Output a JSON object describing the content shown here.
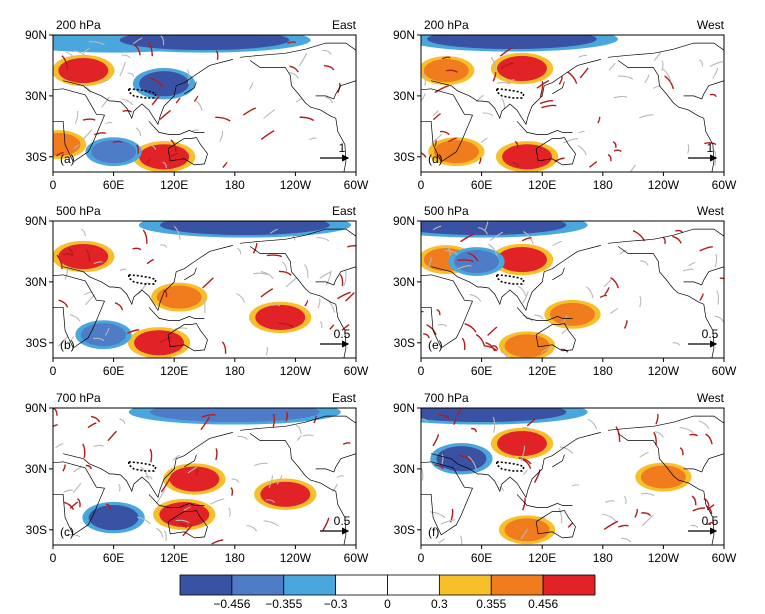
{
  "colors": {
    "negative_strong": "#3a52a3",
    "negative_mid": "#4f7cc7",
    "negative_weak": "#4aa7de",
    "neutral": "#ffffff",
    "positive_weak": "#f7c02b",
    "positive_mid": "#f07c1e",
    "positive_strong": "#e12328",
    "vector_significant": "#b31b1b",
    "vector_other": "#b8b8b8",
    "coast": "#000000"
  },
  "chart_data": {
    "type": "heatmap",
    "x_ticks": [
      "0",
      "60E",
      "120E",
      "180",
      "120W",
      "60W"
    ],
    "y_ticks": [
      "90N",
      "30N",
      "30S"
    ],
    "panels": [
      {
        "id": "a",
        "level": "200 hPa",
        "region": "East",
        "label": "(a)",
        "ref_vector": "1",
        "anomalies": [
          {
            "lon": 30,
            "lat": 55,
            "sign": "positive",
            "magnitude": 0.456
          },
          {
            "lon": 60,
            "lat": 85,
            "sign": "negative",
            "magnitude": 0.3
          },
          {
            "lon": 150,
            "lat": 85,
            "sign": "negative",
            "magnitude": 0.456
          },
          {
            "lon": 110,
            "lat": 42,
            "sign": "negative",
            "magnitude": 0.456
          },
          {
            "lon": 110,
            "lat": -30,
            "sign": "positive",
            "magnitude": 0.456
          },
          {
            "lon": 60,
            "lat": -25,
            "sign": "negative",
            "magnitude": 0.355
          },
          {
            "lon": 5,
            "lat": -18,
            "sign": "positive",
            "magnitude": 0.355
          }
        ]
      },
      {
        "id": "d",
        "level": "200 hPa",
        "region": "West",
        "label": "(d)",
        "ref_vector": "1",
        "anomalies": [
          {
            "lon": 90,
            "lat": 86,
            "sign": "negative",
            "magnitude": 0.456
          },
          {
            "lon": 100,
            "lat": 57,
            "sign": "positive",
            "magnitude": 0.456
          },
          {
            "lon": 25,
            "lat": 55,
            "sign": "positive",
            "magnitude": 0.355
          },
          {
            "lon": 105,
            "lat": -30,
            "sign": "positive",
            "magnitude": 0.456
          },
          {
            "lon": 35,
            "lat": -25,
            "sign": "positive",
            "magnitude": 0.355
          }
        ]
      },
      {
        "id": "b",
        "level": "500 hPa",
        "region": "East",
        "label": "(b)",
        "ref_vector": "0.5",
        "anomalies": [
          {
            "lon": 30,
            "lat": 55,
            "sign": "positive",
            "magnitude": 0.456
          },
          {
            "lon": 190,
            "lat": 86,
            "sign": "negative",
            "magnitude": 0.456
          },
          {
            "lon": 125,
            "lat": 15,
            "sign": "positive",
            "magnitude": 0.355
          },
          {
            "lon": 225,
            "lat": -5,
            "sign": "positive",
            "magnitude": 0.456
          },
          {
            "lon": 105,
            "lat": -30,
            "sign": "positive",
            "magnitude": 0.456
          },
          {
            "lon": 50,
            "lat": -22,
            "sign": "negative",
            "magnitude": 0.355
          }
        ]
      },
      {
        "id": "e",
        "level": "500 hPa",
        "region": "West",
        "label": "(e)",
        "ref_vector": "0.5",
        "anomalies": [
          {
            "lon": 60,
            "lat": 86,
            "sign": "negative",
            "magnitude": 0.456
          },
          {
            "lon": 100,
            "lat": 52,
            "sign": "positive",
            "magnitude": 0.456
          },
          {
            "lon": 25,
            "lat": 52,
            "sign": "positive",
            "magnitude": 0.355
          },
          {
            "lon": 55,
            "lat": 50,
            "sign": "negative",
            "magnitude": 0.355
          },
          {
            "lon": 150,
            "lat": -2,
            "sign": "positive",
            "magnitude": 0.355
          },
          {
            "lon": 105,
            "lat": -33,
            "sign": "positive",
            "magnitude": 0.355
          }
        ]
      },
      {
        "id": "c",
        "level": "700 hPa",
        "region": "East",
        "label": "(c)",
        "ref_vector": "0.5",
        "anomalies": [
          {
            "lon": 180,
            "lat": 86,
            "sign": "negative",
            "magnitude": 0.355
          },
          {
            "lon": 140,
            "lat": 20,
            "sign": "positive",
            "magnitude": 0.456
          },
          {
            "lon": 230,
            "lat": 5,
            "sign": "positive",
            "magnitude": 0.456
          },
          {
            "lon": 130,
            "lat": -15,
            "sign": "positive",
            "magnitude": 0.456
          },
          {
            "lon": 60,
            "lat": -18,
            "sign": "negative",
            "magnitude": 0.456
          }
        ]
      },
      {
        "id": "f",
        "level": "700 hPa",
        "region": "West",
        "label": "(f)",
        "ref_vector": "0.5",
        "anomalies": [
          {
            "lon": 60,
            "lat": 86,
            "sign": "negative",
            "magnitude": 0.456
          },
          {
            "lon": 100,
            "lat": 55,
            "sign": "positive",
            "magnitude": 0.456
          },
          {
            "lon": 40,
            "lat": 40,
            "sign": "negative",
            "magnitude": 0.456
          },
          {
            "lon": 240,
            "lat": 22,
            "sign": "positive",
            "magnitude": 0.355
          },
          {
            "lon": 105,
            "lat": -30,
            "sign": "positive",
            "magnitude": 0.355
          }
        ]
      }
    ],
    "colorbar": {
      "labels": [
        "−0.456",
        "−0.355",
        "−0.3",
        "0",
        "0.3",
        "0.355",
        "0.456"
      ]
    }
  }
}
